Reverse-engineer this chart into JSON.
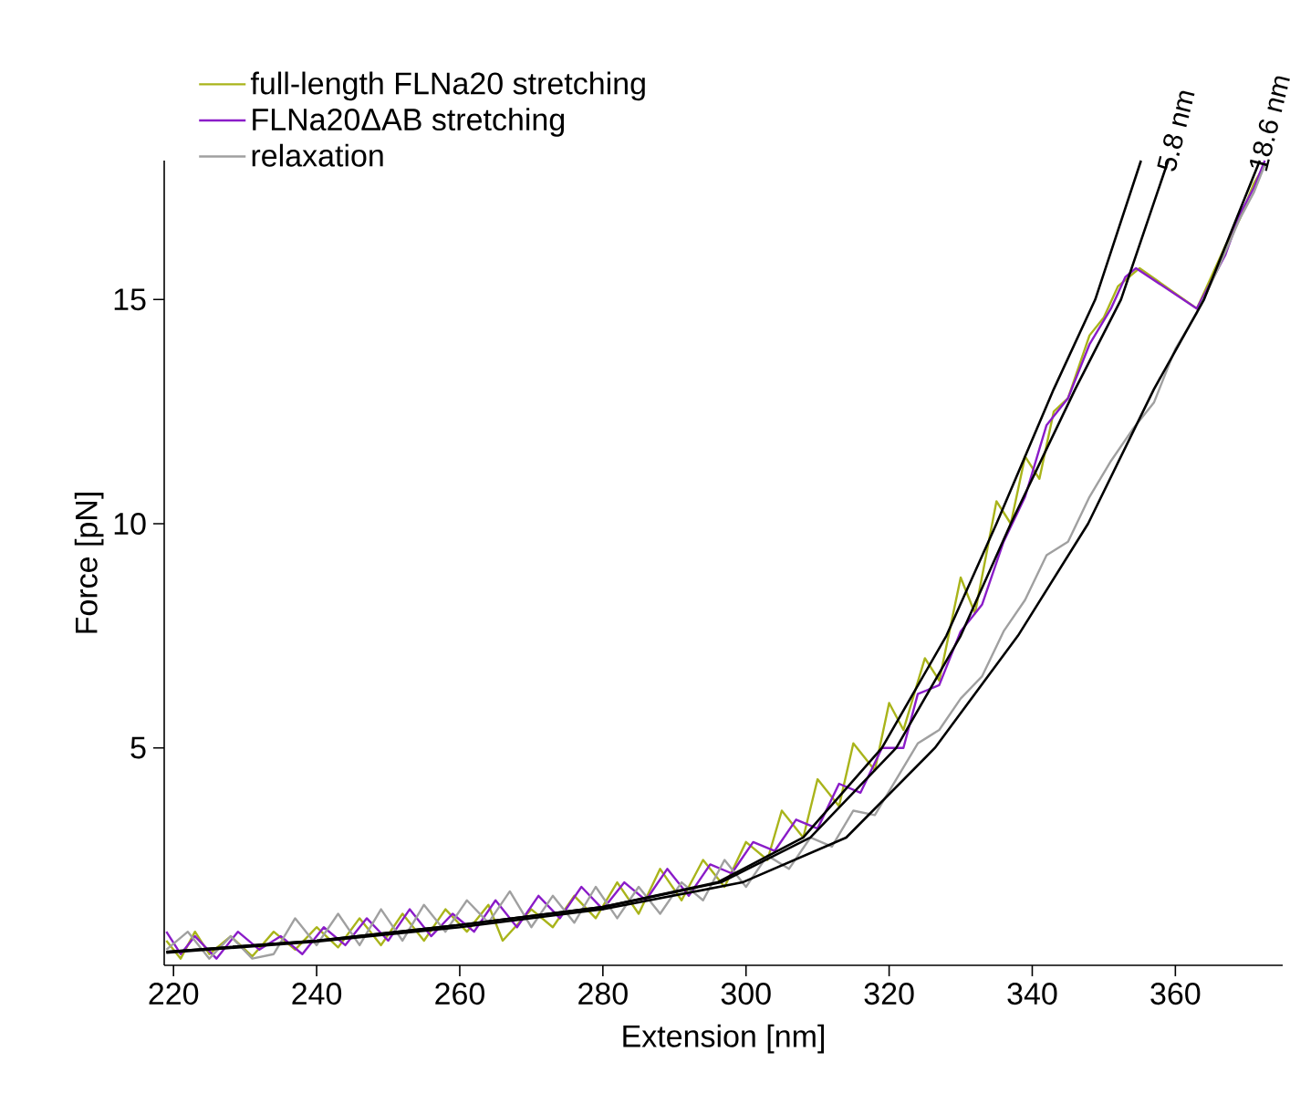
{
  "chart_data": {
    "type": "line",
    "xlabel": "Extension [nm]",
    "ylabel": "Force [pN]",
    "xlim": [
      218.7,
      375
    ],
    "ylim": [
      0.15,
      18.1
    ],
    "xticks": [
      220,
      240,
      260,
      280,
      300,
      320,
      340,
      360
    ],
    "yticks": [
      5,
      10,
      15
    ],
    "grid": false,
    "legend": "top left",
    "marker": "none",
    "line_style": "solid",
    "series": [
      {
        "name": "full-length FLNa20 stretching",
        "color": "#a9b41a",
        "x": [
          219,
          221,
          223,
          225,
          228,
          231,
          234,
          237,
          240,
          243,
          246,
          249,
          252,
          255,
          258,
          261,
          264,
          266,
          270,
          273,
          276,
          279,
          282,
          285,
          288,
          291,
          294,
          297,
          300,
          303,
          305,
          308,
          310,
          313,
          315,
          318,
          320,
          322,
          325,
          327,
          330,
          332,
          335,
          337,
          339,
          341,
          343,
          345,
          348,
          350,
          352,
          355,
          363,
          365,
          367,
          369,
          371,
          372.5
        ],
        "values": [
          0.7,
          0.3,
          0.9,
          0.4,
          0.8,
          0.35,
          0.9,
          0.5,
          1.0,
          0.55,
          1.2,
          0.6,
          1.3,
          0.7,
          1.4,
          0.9,
          1.5,
          0.7,
          1.4,
          1.0,
          1.7,
          1.2,
          2.0,
          1.3,
          2.3,
          1.6,
          2.5,
          1.9,
          2.9,
          2.5,
          3.6,
          3.0,
          4.3,
          3.7,
          5.1,
          4.5,
          6.0,
          5.4,
          7.0,
          6.5,
          8.8,
          8.0,
          10.5,
          10.0,
          11.5,
          11.0,
          12.5,
          12.8,
          14.2,
          14.6,
          15.3,
          15.7,
          14.8,
          15.5,
          16.2,
          16.8,
          17.6,
          18.0
        ]
      },
      {
        "name": "FLNa20ΔAB stretching",
        "color": "#8a1cc8",
        "x": [
          219,
          221,
          223,
          226,
          229,
          232,
          235,
          238,
          241,
          244,
          247,
          250,
          253,
          256,
          259,
          262,
          265,
          268,
          271,
          274,
          277,
          280,
          283,
          286,
          289,
          292,
          295,
          298,
          301,
          304,
          307,
          310,
          313,
          316,
          319,
          322,
          324,
          327,
          330,
          333,
          336,
          339,
          342,
          345,
          348,
          351,
          353,
          354.5,
          363,
          365,
          367,
          369,
          371,
          372.5
        ],
        "values": [
          0.9,
          0.4,
          0.8,
          0.3,
          0.9,
          0.5,
          0.8,
          0.4,
          1.0,
          0.6,
          1.2,
          0.7,
          1.4,
          0.8,
          1.3,
          0.9,
          1.6,
          1.0,
          1.7,
          1.2,
          1.9,
          1.4,
          2.0,
          1.6,
          2.3,
          1.7,
          2.4,
          2.2,
          2.9,
          2.7,
          3.4,
          3.2,
          4.2,
          4.0,
          5.0,
          5.0,
          6.2,
          6.4,
          7.6,
          8.2,
          9.6,
          10.6,
          12.2,
          12.8,
          14.0,
          14.8,
          15.5,
          15.7,
          14.8,
          15.4,
          16.0,
          16.9,
          17.5,
          18.1
        ]
      },
      {
        "name": "relaxation",
        "color": "#a0a0a0",
        "x": [
          219,
          222,
          225,
          228,
          231,
          234,
          237,
          240,
          243,
          246,
          249,
          252,
          255,
          258,
          261,
          264,
          267,
          270,
          273,
          276,
          279,
          282,
          285,
          288,
          291,
          294,
          297,
          300,
          303,
          306,
          309,
          312,
          315,
          318,
          321,
          324,
          327,
          330,
          333,
          336,
          339,
          342,
          345,
          348,
          351,
          354,
          357,
          360,
          363,
          366,
          369,
          371,
          372.5
        ],
        "values": [
          0.5,
          0.9,
          0.3,
          0.8,
          0.3,
          0.4,
          1.2,
          0.6,
          1.3,
          0.6,
          1.4,
          0.7,
          1.5,
          0.9,
          1.6,
          1.1,
          1.8,
          1.0,
          1.7,
          1.1,
          1.9,
          1.2,
          1.9,
          1.3,
          2.0,
          1.6,
          2.5,
          1.9,
          2.6,
          2.3,
          3.0,
          2.8,
          3.6,
          3.5,
          4.3,
          5.1,
          5.4,
          6.1,
          6.6,
          7.6,
          8.3,
          9.3,
          9.6,
          10.6,
          11.4,
          12.1,
          12.7,
          13.9,
          14.7,
          15.7,
          16.8,
          17.4,
          18.0
        ]
      },
      {
        "color": "#000000",
        "x": [
          219,
          240,
          260,
          280,
          296,
          308,
          319,
          328,
          335,
          343,
          348.8,
          355.2
        ],
        "values": [
          0.45,
          0.7,
          1.05,
          1.45,
          2,
          3,
          5,
          7.5,
          10,
          13,
          15,
          18.1
        ]
      },
      {
        "color": "#000000",
        "x": [
          219,
          240,
          260,
          280,
          296.5,
          309,
          321,
          330,
          337,
          346,
          352.4,
          359
        ],
        "values": [
          0.45,
          0.7,
          1.05,
          1.45,
          2,
          3,
          5,
          7.5,
          10,
          13,
          15,
          18.1
        ]
      },
      {
        "color": "#000000",
        "x": [
          219,
          240,
          260,
          280,
          299.5,
          314,
          326.4,
          338,
          347.8,
          357,
          364,
          371.8
        ],
        "values": [
          0.43,
          0.68,
          1.0,
          1.4,
          2,
          3,
          5,
          7.5,
          10,
          13,
          15,
          18.1
        ]
      }
    ],
    "annotations": [
      {
        "text": "5.8 nm",
        "x": 359,
        "y": 18.1
      },
      {
        "text": "18.6 nm",
        "x": 371.8,
        "y": 18.1
      }
    ]
  }
}
